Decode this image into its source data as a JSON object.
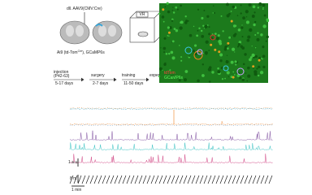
{
  "panel_a": {
    "injection_label": "dll. AAV9(CMV:Cre)",
    "mouse_line": "Ai9 (td-Tom",
    "mouse_line_sup": "Cre",
    "mouse_line_end": "), GCaMP6s",
    "vr_label": "VR",
    "timeline": {
      "steps": [
        "injection",
        "(P42-63)",
        "surgery",
        "training",
        "experiment"
      ],
      "intervals": [
        "5-17 days",
        "2-7 days",
        "11-50 days"
      ]
    }
  },
  "panel_b": {
    "legend": [
      "tdTom",
      "GCaMP6s"
    ]
  },
  "panel_c": {
    "scale_fluorescence": "1 a.u.",
    "scale_position": "8 m",
    "scale_time": "1 min"
  }
}
